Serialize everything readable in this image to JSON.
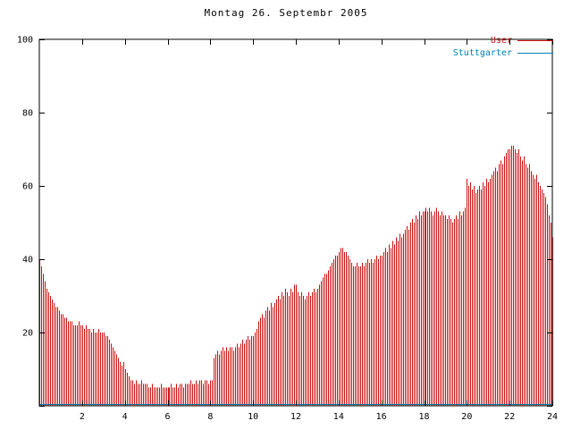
{
  "title": "Montag 26. Septembr 2005",
  "chart_data": {
    "type": "bar",
    "style_note": "gnuplot-style impulse plot",
    "title": "Montag 26. Septembr 2005",
    "xlabel": "",
    "ylabel": "",
    "xlim": [
      0,
      24
    ],
    "ylim": [
      0,
      100
    ],
    "x_tick_values": [
      2,
      4,
      6,
      8,
      10,
      12,
      14,
      16,
      18,
      20,
      22,
      24
    ],
    "x_tick_labels": [
      "2",
      "4",
      "6",
      "8",
      "10",
      "12",
      "14",
      "16",
      "18",
      "20",
      "22",
      "24"
    ],
    "y_tick_values": [
      0,
      20,
      40,
      60,
      80,
      100
    ],
    "y_labeled_values": [
      20,
      40,
      60,
      80,
      100
    ],
    "x_start_hour": 0,
    "x_step_minutes": 5,
    "legend_position": "top-right",
    "series": [
      {
        "name": "User",
        "color": "#cc1111",
        "style": "impulses",
        "values": [
          40,
          38,
          36,
          34,
          32,
          31,
          30,
          29,
          28,
          27,
          27,
          26,
          25,
          25,
          24,
          24,
          23,
          23,
          23,
          22,
          22,
          22,
          23,
          22,
          22,
          21,
          22,
          21,
          21,
          20,
          21,
          20,
          20,
          21,
          20,
          20,
          20,
          19,
          19,
          18,
          17,
          16,
          15,
          14,
          13,
          12,
          11,
          12,
          10,
          9,
          8,
          7,
          7,
          6,
          7,
          6,
          6,
          7,
          6,
          6,
          6,
          5,
          5,
          6,
          5,
          5,
          5,
          5,
          6,
          5,
          5,
          5,
          5,
          5,
          6,
          5,
          5,
          6,
          5,
          6,
          6,
          5,
          6,
          6,
          6,
          7,
          6,
          6,
          7,
          6,
          7,
          7,
          6,
          7,
          7,
          6,
          7,
          7,
          13,
          14,
          15,
          14,
          15,
          16,
          15,
          16,
          15,
          16,
          16,
          15,
          16,
          17,
          16,
          17,
          18,
          17,
          18,
          19,
          18,
          19,
          19,
          20,
          21,
          23,
          24,
          25,
          24,
          26,
          27,
          26,
          28,
          27,
          28,
          29,
          30,
          29,
          31,
          30,
          32,
          31,
          30,
          32,
          31,
          33,
          33,
          31,
          30,
          31,
          30,
          29,
          30,
          31,
          30,
          31,
          32,
          31,
          32,
          33,
          34,
          35,
          36,
          36,
          37,
          38,
          39,
          40,
          41,
          41,
          42,
          43,
          43,
          42,
          42,
          41,
          40,
          39,
          38,
          38,
          39,
          38,
          38,
          39,
          38,
          39,
          40,
          39,
          40,
          39,
          40,
          41,
          40,
          41,
          41,
          42,
          43,
          42,
          44,
          43,
          45,
          44,
          46,
          45,
          47,
          46,
          47,
          48,
          49,
          48,
          50,
          51,
          50,
          52,
          51,
          53,
          52,
          53,
          53,
          54,
          53,
          54,
          53,
          52,
          53,
          54,
          53,
          52,
          53,
          52,
          52,
          51,
          52,
          51,
          50,
          51,
          52,
          51,
          53,
          52,
          53,
          54,
          62,
          60,
          61,
          59,
          60,
          58,
          59,
          60,
          59,
          61,
          60,
          62,
          61,
          62,
          63,
          64,
          65,
          64,
          66,
          67,
          66,
          68,
          69,
          70,
          70,
          71,
          71,
          70,
          69,
          70,
          68,
          67,
          68,
          66,
          65,
          66,
          64,
          63,
          62,
          63,
          61,
          60,
          59,
          58,
          57,
          55,
          52,
          50,
          46
        ]
      },
      {
        "name": "Stuttgarter",
        "color": "#0080b4",
        "style": "line",
        "constant_value": 0
      }
    ]
  }
}
